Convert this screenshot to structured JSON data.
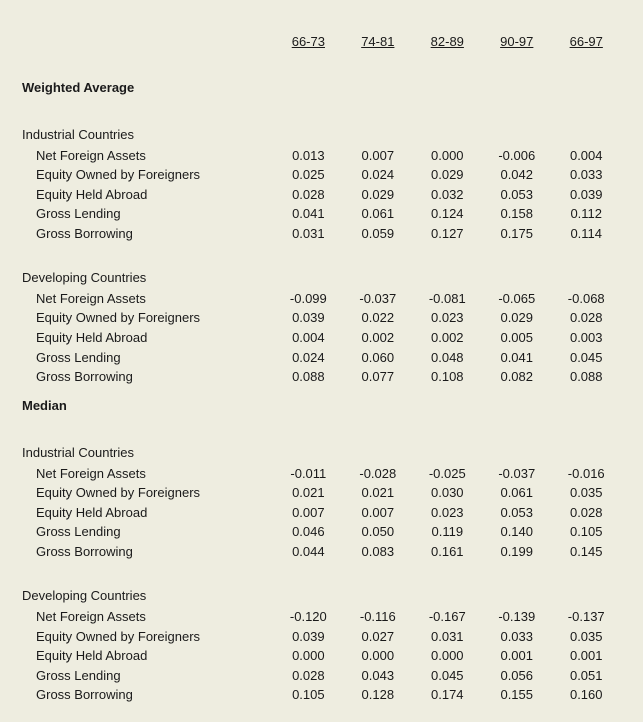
{
  "colors": {
    "background": "#eeede0",
    "text": "#1a1a1a"
  },
  "typography": {
    "font_family": "Arial",
    "font_size_pt": 10
  },
  "table": {
    "periods": [
      "66-73",
      "74-81",
      "82-89",
      "90-97",
      "66-97"
    ],
    "row_labels": [
      "Net Foreign Assets",
      "Equity Owned by Foreigners",
      "Equity Held Abroad",
      "Gross Lending",
      "Gross Borrowing"
    ],
    "sections": [
      {
        "title": "Weighted Average",
        "groups": [
          {
            "title": "Industrial Countries",
            "rows": [
              [
                "0.013",
                "0.007",
                "0.000",
                "-0.006",
                "0.004"
              ],
              [
                "0.025",
                "0.024",
                "0.029",
                "0.042",
                "0.033"
              ],
              [
                "0.028",
                "0.029",
                "0.032",
                "0.053",
                "0.039"
              ],
              [
                "0.041",
                "0.061",
                "0.124",
                "0.158",
                "0.112"
              ],
              [
                "0.031",
                "0.059",
                "0.127",
                "0.175",
                "0.114"
              ]
            ]
          },
          {
            "title": "Developing Countries",
            "rows": [
              [
                "-0.099",
                "-0.037",
                "-0.081",
                "-0.065",
                "-0.068"
              ],
              [
                "0.039",
                "0.022",
                "0.023",
                "0.029",
                "0.028"
              ],
              [
                "0.004",
                "0.002",
                "0.002",
                "0.005",
                "0.003"
              ],
              [
                "0.024",
                "0.060",
                "0.048",
                "0.041",
                "0.045"
              ],
              [
                "0.088",
                "0.077",
                "0.108",
                "0.082",
                "0.088"
              ]
            ]
          }
        ]
      },
      {
        "title": "Median",
        "groups": [
          {
            "title": "Industrial Countries",
            "rows": [
              [
                "-0.011",
                "-0.028",
                "-0.025",
                "-0.037",
                "-0.016"
              ],
              [
                "0.021",
                "0.021",
                "0.030",
                "0.061",
                "0.035"
              ],
              [
                "0.007",
                "0.007",
                "0.023",
                "0.053",
                "0.028"
              ],
              [
                "0.046",
                "0.050",
                "0.119",
                "0.140",
                "0.105"
              ],
              [
                "0.044",
                "0.083",
                "0.161",
                "0.199",
                "0.145"
              ]
            ]
          },
          {
            "title": "Developing Countries",
            "rows": [
              [
                "-0.120",
                "-0.116",
                "-0.167",
                "-0.139",
                "-0.137"
              ],
              [
                "0.039",
                "0.027",
                "0.031",
                "0.033",
                "0.035"
              ],
              [
                "0.000",
                "0.000",
                "0.000",
                "0.001",
                "0.001"
              ],
              [
                "0.028",
                "0.043",
                "0.045",
                "0.056",
                "0.051"
              ],
              [
                "0.105",
                "0.128",
                "0.174",
                "0.155",
                "0.160"
              ]
            ]
          }
        ]
      }
    ]
  }
}
